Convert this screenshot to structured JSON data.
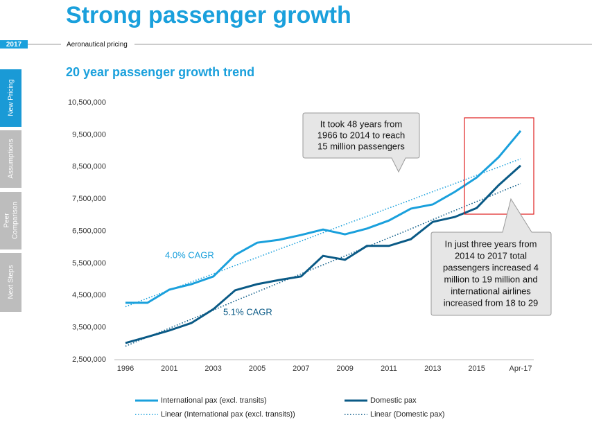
{
  "header": {
    "title": "Strong passenger growth",
    "year": "2017",
    "section": "Aeronautical pricing"
  },
  "tabs": [
    "New Pricing",
    "Assumptions",
    [
      "Peer",
      "Comparison"
    ],
    "Next Steps"
  ],
  "chart_data": {
    "type": "line",
    "title": "20 year passenger growth trend",
    "categories": [
      "1996",
      null,
      "2001",
      null,
      "2003",
      null,
      "2005",
      null,
      "2007",
      null,
      "2009",
      null,
      "2011",
      null,
      "2013",
      null,
      "2015",
      null,
      "Apr-17"
    ],
    "series": [
      {
        "name": "International pax (excl. transits)",
        "color": "#1aa0dc",
        "style": "solid",
        "values": [
          4270000,
          4270000,
          4680000,
          4850000,
          5090000,
          5760000,
          6140000,
          6230000,
          6380000,
          6550000,
          6400000,
          6580000,
          6830000,
          7200000,
          7330000,
          7720000,
          8170000,
          8800000,
          9620000
        ]
      },
      {
        "name": "Domestic pax",
        "color": "#0a5a86",
        "style": "solid",
        "values": [
          3020000,
          3210000,
          3410000,
          3640000,
          4070000,
          4660000,
          4850000,
          4980000,
          5090000,
          5730000,
          5610000,
          6040000,
          6040000,
          6250000,
          6790000,
          6940000,
          7220000,
          7930000,
          8540000
        ]
      },
      {
        "name": "Linear (International pax (excl. transits))",
        "color": "#1aa0dc",
        "style": "dotted",
        "values": [
          4150000,
          4410000,
          4660000,
          4920000,
          5170000,
          5430000,
          5680000,
          5940000,
          6190000,
          6450000,
          6710000,
          6960000,
          7220000,
          7470000,
          7730000,
          7980000,
          8240000,
          8490000,
          8750000
        ]
      },
      {
        "name": "Linear (Domestic pax)",
        "color": "#0a5a86",
        "style": "dotted",
        "values": [
          2920000,
          3200000,
          3480000,
          3760000,
          4040000,
          4330000,
          4610000,
          4890000,
          5170000,
          5450000,
          5730000,
          6010000,
          6290000,
          6570000,
          6860000,
          7140000,
          7420000,
          7700000,
          7980000
        ]
      }
    ],
    "ylim": [
      2500000,
      10500000
    ],
    "yticks": [
      {
        "value": 2500000,
        "label": "2,500,000"
      },
      {
        "value": 3500000,
        "label": "3,500,000"
      },
      {
        "value": 4500000,
        "label": "4,500,000"
      },
      {
        "value": 5500000,
        "label": "5,500,000"
      },
      {
        "value": 6500000,
        "label": "6,500,000"
      },
      {
        "value": 7500000,
        "label": "7,500,000"
      },
      {
        "value": 8500000,
        "label": "8,500,000"
      },
      {
        "value": 9500000,
        "label": "9,500,000"
      },
      {
        "value": 10500000,
        "label": "10,500,000"
      }
    ],
    "grid": false,
    "annotations": {
      "intl_cagr": "4.0% CAGR",
      "dom_cagr": "5.1% CAGR",
      "callout1": [
        "It took 48 years from",
        "1966 to 2014 to reach",
        "15 million passengers"
      ],
      "callout2": [
        "In just three years from",
        "2014 to 2017 total",
        "passengers increased 4",
        "million to 19 million and",
        "international airlines",
        "increased from 18 to 29"
      ]
    }
  }
}
